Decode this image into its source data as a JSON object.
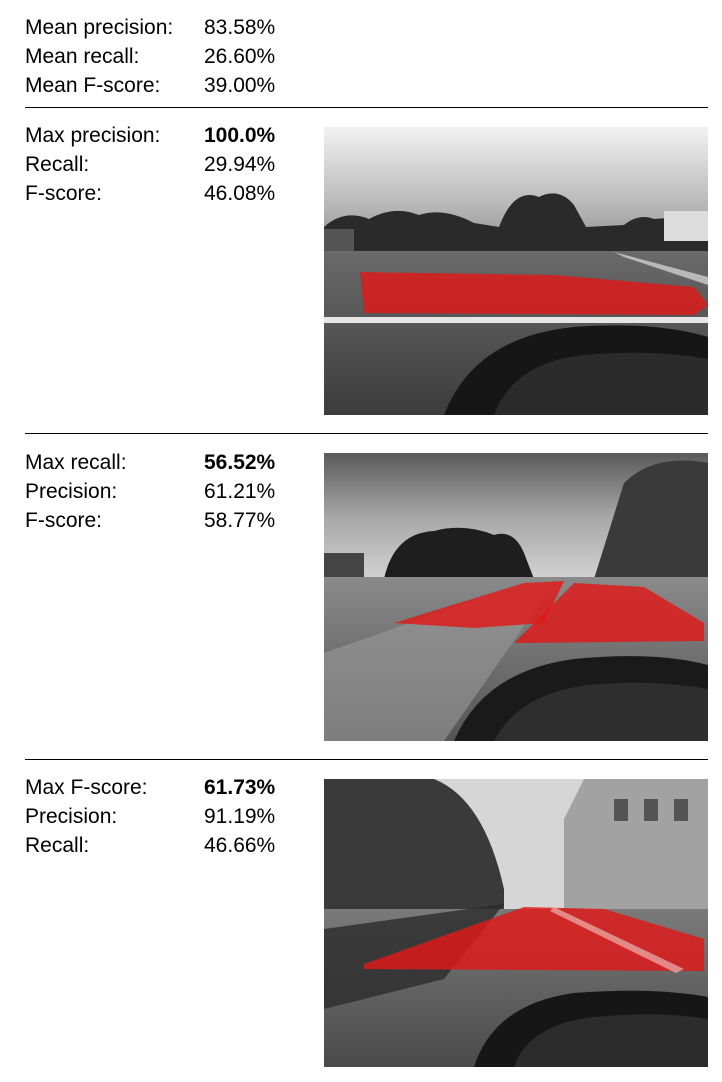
{
  "summary": {
    "rows": [
      {
        "label": "Mean precision:",
        "value": "83.58%"
      },
      {
        "label": "Mean recall:",
        "value": "26.60%"
      },
      {
        "label": "Mean F-score:",
        "value": "39.00%"
      }
    ]
  },
  "panels": [
    {
      "rows": [
        {
          "label": "Max precision:",
          "value": "100.0%"
        },
        {
          "label": "Recall:",
          "value": "29.94%"
        },
        {
          "label": "F-score:",
          "value": "46.08%"
        }
      ],
      "image_description": "grayscale road scene with red lane-detection overlay"
    },
    {
      "rows": [
        {
          "label": "Max recall:",
          "value": "56.52%"
        },
        {
          "label": "Precision:",
          "value": "61.21%"
        },
        {
          "label": "F-score:",
          "value": "58.77%"
        }
      ],
      "image_description": "grayscale intersection scene with red road segmentation overlay"
    },
    {
      "rows": [
        {
          "label": "Max F-score:",
          "value": "61.73%"
        },
        {
          "label": "Precision:",
          "value": "91.19%"
        },
        {
          "label": "Recall:",
          "value": "46.66%"
        }
      ],
      "image_description": "grayscale tree-lined street with red road segmentation overlay"
    }
  ],
  "colors": {
    "overlay": "#e01818",
    "divider": "#000000"
  }
}
